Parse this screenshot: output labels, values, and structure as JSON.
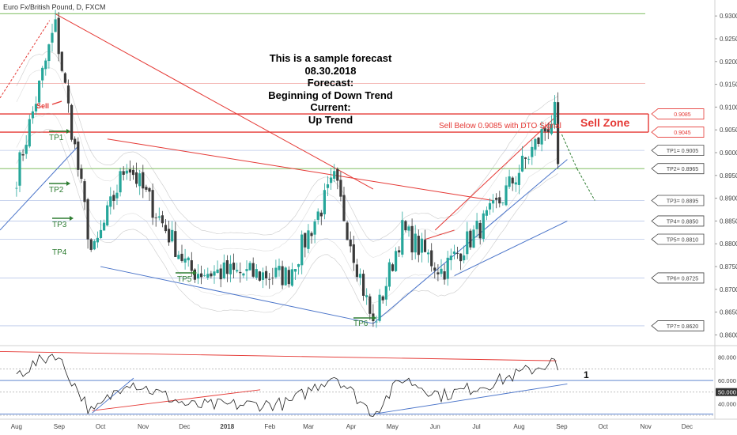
{
  "header": {
    "symbol_label": "Euro Fx/British Pound, D, FXCM"
  },
  "annotations": {
    "forecast_lines": [
      "This is a sample forecast",
      "08.30.2018",
      "Forecast:",
      "Beginning of Down Trend",
      "Current:",
      "Up Trend"
    ],
    "sell_signal": "Sell Below 0.9085 with DTO Signal",
    "sell_zone": "Sell Zone",
    "sell_arrow_label": "Sell",
    "rsi_marker": "1",
    "targets_left": [
      "TP1",
      "TP2",
      "TP3",
      "TP4",
      "TP5",
      "TP6"
    ],
    "target_tags": [
      {
        "label": "0.9085",
        "price": 0.9085,
        "color": "#e53935"
      },
      {
        "label": "0.9045",
        "price": 0.9045,
        "color": "#e53935"
      },
      {
        "label": "TP1= 0.9005",
        "price": 0.9005,
        "color": "#444444"
      },
      {
        "label": "TP2= 0.8965",
        "price": 0.8965,
        "color": "#444444"
      },
      {
        "label": "TP3= 0.8895",
        "price": 0.8895,
        "color": "#444444"
      },
      {
        "label": "TP4= 0.8850",
        "price": 0.885,
        "color": "#444444"
      },
      {
        "label": "TP5= 0.8810",
        "price": 0.881,
        "color": "#444444"
      },
      {
        "label": "TP6= 0.8725",
        "price": 0.8725,
        "color": "#444444"
      },
      {
        "label": "TP7= 0.8620",
        "price": 0.862,
        "color": "#444444"
      }
    ]
  },
  "chart_data": [
    {
      "type": "candlestick",
      "title": "Euro Fx/British Pound, D, FXCM",
      "x_ticks": [
        "Aug",
        "Sep",
        "Oct",
        "Nov",
        "Dec",
        "2018",
        "Feb",
        "Mar",
        "Apr",
        "May",
        "Jun",
        "Jul",
        "Aug",
        "Sep",
        "Oct",
        "Nov",
        "Dec"
      ],
      "y_ticks": [
        "0.93000",
        "0.92500",
        "0.92000",
        "0.91500",
        "0.91000",
        "0.90500",
        "0.90000",
        "0.89500",
        "0.89000",
        "0.88500",
        "0.88000",
        "0.87500",
        "0.87000",
        "0.86500",
        "0.86000"
      ],
      "ylim": [
        0.858,
        0.9335
      ],
      "key_points": [
        {
          "date": "2017-08",
          "price": 0.895
        },
        {
          "date": "2017-08-29",
          "price": 0.928
        },
        {
          "date": "2017-09-25",
          "price": 0.877
        },
        {
          "date": "2017-10-20",
          "price": 0.898
        },
        {
          "date": "2017-12-05",
          "price": 0.874
        },
        {
          "date": "2018-02-14",
          "price": 0.873
        },
        {
          "date": "2018-03-20",
          "price": 0.894
        },
        {
          "date": "2018-04-17",
          "price": 0.862
        },
        {
          "date": "2018-05-08",
          "price": 0.883
        },
        {
          "date": "2018-06-06",
          "price": 0.874
        },
        {
          "date": "2018-07-13",
          "price": 0.887
        },
        {
          "date": "2018-08-28",
          "price": 0.909
        },
        {
          "date": "2018-08-30",
          "price": 0.8975
        }
      ],
      "horizontal_levels": [
        0.9305,
        0.9152,
        0.9085,
        0.9045,
        0.9005,
        0.8965,
        0.8895,
        0.885,
        0.881,
        0.8725,
        0.862
      ]
    },
    {
      "type": "line",
      "title": "RSI",
      "y_ticks": [
        "80.000",
        "60.000",
        "50.000",
        "40.000"
      ],
      "ylim": [
        28,
        88
      ],
      "levels": [
        70,
        50,
        30
      ],
      "key_points": [
        {
          "date": "2017-08",
          "value": 65
        },
        {
          "date": "2017-08-29",
          "value": 84
        },
        {
          "date": "2017-09-25",
          "value": 31
        },
        {
          "date": "2017-10-20",
          "value": 60
        },
        {
          "date": "2017-12-05",
          "value": 38
        },
        {
          "date": "2018-02-14",
          "value": 40
        },
        {
          "date": "2018-03-20",
          "value": 65
        },
        {
          "date": "2018-04-17",
          "value": 31
        },
        {
          "date": "2018-05-08",
          "value": 62
        },
        {
          "date": "2018-06-06",
          "value": 47
        },
        {
          "date": "2018-07-13",
          "value": 58
        },
        {
          "date": "2018-08-28",
          "value": 77
        },
        {
          "date": "2018-08-30",
          "value": 60
        }
      ]
    }
  ],
  "colors": {
    "bull": "#26a69a",
    "bear": "#3a3a3a",
    "trend_red": "#e53935",
    "trend_blue": "#4a74c9",
    "level_green": "#6db34a",
    "level_blue": "#b9c7e8",
    "target_green": "#2e7d32",
    "band_gray": "#9e9e9e"
  }
}
